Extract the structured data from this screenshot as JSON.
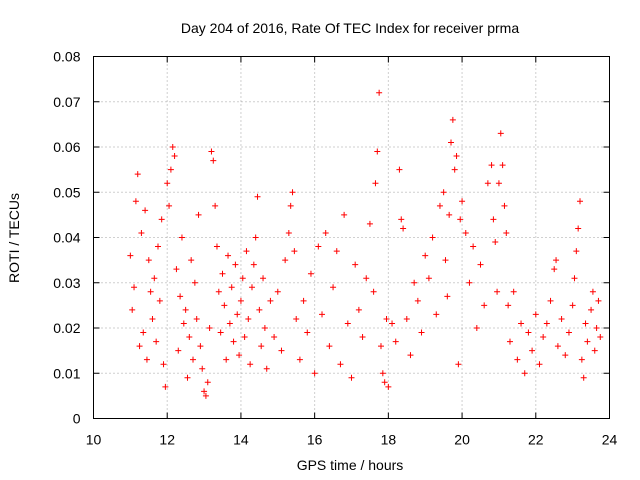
{
  "chart_data": {
    "type": "scatter",
    "title": "Day 204 of 2016, Rate Of TEC Index for receiver prma",
    "xlabel": "GPS time / hours",
    "ylabel": "ROTI / TECUs",
    "xlim": [
      10,
      24
    ],
    "ylim": [
      0,
      0.08
    ],
    "xticks": [
      10,
      12,
      14,
      16,
      18,
      20,
      22,
      24
    ],
    "xtick_labels": [
      "10",
      "12",
      "14",
      "16",
      "18",
      "20",
      "22",
      "24"
    ],
    "yticks": [
      0,
      0.01,
      0.02,
      0.03,
      0.04,
      0.05,
      0.06,
      0.07,
      0.08
    ],
    "ytick_labels": [
      "0",
      "0.01",
      "0.02",
      "0.03",
      "0.04",
      "0.05",
      "0.06",
      "0.07",
      "0.08"
    ],
    "grid": true,
    "marker": "+",
    "color": "#ff0000",
    "series": [
      {
        "name": "ROTI",
        "points": [
          [
            11.0,
            0.036
          ],
          [
            11.05,
            0.024
          ],
          [
            11.1,
            0.029
          ],
          [
            11.15,
            0.048
          ],
          [
            11.2,
            0.054
          ],
          [
            11.25,
            0.016
          ],
          [
            11.3,
            0.041
          ],
          [
            11.35,
            0.019
          ],
          [
            11.4,
            0.046
          ],
          [
            11.45,
            0.013
          ],
          [
            11.5,
            0.035
          ],
          [
            11.55,
            0.028
          ],
          [
            11.6,
            0.022
          ],
          [
            11.65,
            0.031
          ],
          [
            11.7,
            0.017
          ],
          [
            11.75,
            0.038
          ],
          [
            11.8,
            0.026
          ],
          [
            11.85,
            0.044
          ],
          [
            11.9,
            0.012
          ],
          [
            11.95,
            0.007
          ],
          [
            12.0,
            0.052
          ],
          [
            12.05,
            0.047
          ],
          [
            12.1,
            0.055
          ],
          [
            12.15,
            0.06
          ],
          [
            12.2,
            0.058
          ],
          [
            12.25,
            0.033
          ],
          [
            12.3,
            0.015
          ],
          [
            12.35,
            0.027
          ],
          [
            12.4,
            0.04
          ],
          [
            12.45,
            0.021
          ],
          [
            12.5,
            0.024
          ],
          [
            12.55,
            0.009
          ],
          [
            12.6,
            0.018
          ],
          [
            12.65,
            0.035
          ],
          [
            12.7,
            0.013
          ],
          [
            12.75,
            0.03
          ],
          [
            12.8,
            0.022
          ],
          [
            12.85,
            0.045
          ],
          [
            12.9,
            0.016
          ],
          [
            12.95,
            0.011
          ],
          [
            13.0,
            0.006
          ],
          [
            13.05,
            0.005
          ],
          [
            13.1,
            0.008
          ],
          [
            13.15,
            0.02
          ],
          [
            13.2,
            0.059
          ],
          [
            13.25,
            0.057
          ],
          [
            13.3,
            0.047
          ],
          [
            13.35,
            0.038
          ],
          [
            13.4,
            0.028
          ],
          [
            13.45,
            0.019
          ],
          [
            13.5,
            0.032
          ],
          [
            13.55,
            0.025
          ],
          [
            13.6,
            0.013
          ],
          [
            13.65,
            0.036
          ],
          [
            13.7,
            0.021
          ],
          [
            13.75,
            0.029
          ],
          [
            13.8,
            0.017
          ],
          [
            13.85,
            0.034
          ],
          [
            13.9,
            0.023
          ],
          [
            13.95,
            0.014
          ],
          [
            14.0,
            0.026
          ],
          [
            14.05,
            0.031
          ],
          [
            14.1,
            0.018
          ],
          [
            14.15,
            0.037
          ],
          [
            14.2,
            0.022
          ],
          [
            14.25,
            0.012
          ],
          [
            14.3,
            0.029
          ],
          [
            14.35,
            0.034
          ],
          [
            14.4,
            0.04
          ],
          [
            14.45,
            0.049
          ],
          [
            14.5,
            0.024
          ],
          [
            14.55,
            0.016
          ],
          [
            14.6,
            0.031
          ],
          [
            14.65,
            0.02
          ],
          [
            14.7,
            0.011
          ],
          [
            14.8,
            0.026
          ],
          [
            14.9,
            0.018
          ],
          [
            15.0,
            0.028
          ],
          [
            15.1,
            0.015
          ],
          [
            15.2,
            0.035
          ],
          [
            15.3,
            0.041
          ],
          [
            15.35,
            0.047
          ],
          [
            15.4,
            0.05
          ],
          [
            15.45,
            0.037
          ],
          [
            15.5,
            0.022
          ],
          [
            15.6,
            0.013
          ],
          [
            15.7,
            0.026
          ],
          [
            15.8,
            0.019
          ],
          [
            15.9,
            0.032
          ],
          [
            16.0,
            0.01
          ],
          [
            16.1,
            0.038
          ],
          [
            16.2,
            0.023
          ],
          [
            16.3,
            0.041
          ],
          [
            16.4,
            0.016
          ],
          [
            16.5,
            0.029
          ],
          [
            16.6,
            0.037
          ],
          [
            16.7,
            0.012
          ],
          [
            16.8,
            0.045
          ],
          [
            16.9,
            0.021
          ],
          [
            17.0,
            0.009
          ],
          [
            17.1,
            0.034
          ],
          [
            17.2,
            0.024
          ],
          [
            17.3,
            0.018
          ],
          [
            17.4,
            0.031
          ],
          [
            17.5,
            0.043
          ],
          [
            17.6,
            0.028
          ],
          [
            17.65,
            0.052
          ],
          [
            17.7,
            0.059
          ],
          [
            17.75,
            0.072
          ],
          [
            17.8,
            0.016
          ],
          [
            17.85,
            0.01
          ],
          [
            17.9,
            0.008
          ],
          [
            17.95,
            0.022
          ],
          [
            18.0,
            0.007
          ],
          [
            18.1,
            0.021
          ],
          [
            18.2,
            0.017
          ],
          [
            18.3,
            0.055
          ],
          [
            18.35,
            0.044
          ],
          [
            18.4,
            0.042
          ],
          [
            18.5,
            0.022
          ],
          [
            18.6,
            0.014
          ],
          [
            18.7,
            0.03
          ],
          [
            18.8,
            0.026
          ],
          [
            18.9,
            0.019
          ],
          [
            19.0,
            0.036
          ],
          [
            19.1,
            0.031
          ],
          [
            19.2,
            0.04
          ],
          [
            19.3,
            0.023
          ],
          [
            19.4,
            0.047
          ],
          [
            19.5,
            0.05
          ],
          [
            19.55,
            0.035
          ],
          [
            19.6,
            0.027
          ],
          [
            19.65,
            0.045
          ],
          [
            19.7,
            0.061
          ],
          [
            19.75,
            0.066
          ],
          [
            19.8,
            0.055
          ],
          [
            19.85,
            0.058
          ],
          [
            19.9,
            0.012
          ],
          [
            19.95,
            0.044
          ],
          [
            20.0,
            0.048
          ],
          [
            20.1,
            0.041
          ],
          [
            20.2,
            0.03
          ],
          [
            20.3,
            0.038
          ],
          [
            20.4,
            0.02
          ],
          [
            20.5,
            0.034
          ],
          [
            20.6,
            0.025
          ],
          [
            20.7,
            0.052
          ],
          [
            20.8,
            0.056
          ],
          [
            20.85,
            0.044
          ],
          [
            20.9,
            0.039
          ],
          [
            20.95,
            0.028
          ],
          [
            21.0,
            0.052
          ],
          [
            21.05,
            0.063
          ],
          [
            21.1,
            0.056
          ],
          [
            21.15,
            0.047
          ],
          [
            21.2,
            0.041
          ],
          [
            21.25,
            0.025
          ],
          [
            21.3,
            0.017
          ],
          [
            21.4,
            0.028
          ],
          [
            21.5,
            0.013
          ],
          [
            21.6,
            0.021
          ],
          [
            21.7,
            0.01
          ],
          [
            21.8,
            0.019
          ],
          [
            21.9,
            0.015
          ],
          [
            22.0,
            0.023
          ],
          [
            22.1,
            0.012
          ],
          [
            22.2,
            0.018
          ],
          [
            22.3,
            0.021
          ],
          [
            22.4,
            0.026
          ],
          [
            22.5,
            0.033
          ],
          [
            22.55,
            0.035
          ],
          [
            22.6,
            0.016
          ],
          [
            22.7,
            0.022
          ],
          [
            22.8,
            0.014
          ],
          [
            22.9,
            0.019
          ],
          [
            23.0,
            0.025
          ],
          [
            23.05,
            0.031
          ],
          [
            23.1,
            0.037
          ],
          [
            23.15,
            0.042
          ],
          [
            23.2,
            0.048
          ],
          [
            23.25,
            0.013
          ],
          [
            23.3,
            0.009
          ],
          [
            23.35,
            0.021
          ],
          [
            23.4,
            0.017
          ],
          [
            23.5,
            0.024
          ],
          [
            23.55,
            0.028
          ],
          [
            23.6,
            0.015
          ],
          [
            23.65,
            0.02
          ],
          [
            23.7,
            0.026
          ],
          [
            23.75,
            0.018
          ]
        ]
      }
    ]
  }
}
